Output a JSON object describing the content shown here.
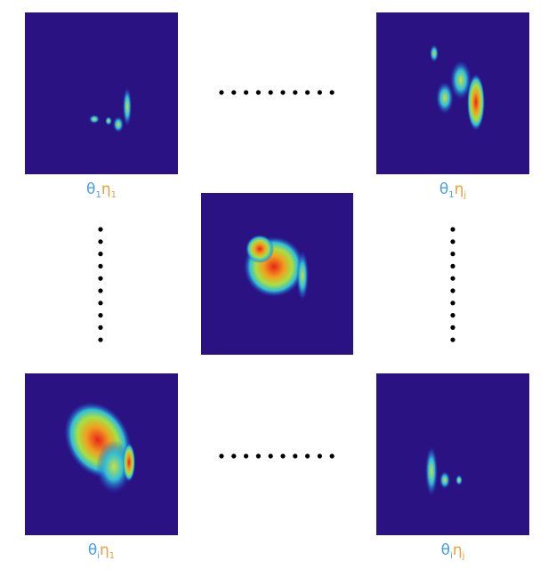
{
  "labels": [
    {
      "theta": "θ",
      "theta_sub": "1",
      "eta": "η",
      "eta_sub": "1"
    },
    {
      "theta": "θ",
      "theta_sub": "1",
      "eta": "η",
      "eta_sub": "j"
    },
    {
      "theta": "θ",
      "theta_sub": "i",
      "eta": "η",
      "eta_sub": "1"
    },
    {
      "theta": "θ",
      "theta_sub": "i",
      "eta": "η",
      "eta_sub": "j"
    }
  ]
}
